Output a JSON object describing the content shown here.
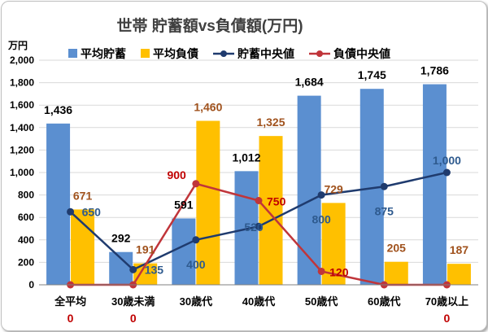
{
  "chart_data": {
    "type": "bar",
    "title": "世帯  貯蓄額vs負債額(万円)",
    "y_unit": "万円",
    "categories": [
      "全平均",
      "30歳未満",
      "30歳代",
      "40歳代",
      "50歳代",
      "60歳代",
      "70歳以上"
    ],
    "ylim": [
      0,
      2000
    ],
    "yticks": [
      "0",
      "200",
      "400",
      "600",
      "800",
      "1,000",
      "1,200",
      "1,400",
      "1,600",
      "1,800",
      "2,000"
    ],
    "grid": true,
    "legend_position": "top",
    "series": [
      {
        "name": "平均貯蓄",
        "kind": "bar",
        "color": "#5b8fd0",
        "label_color": "#000000",
        "values": [
          1436,
          292,
          591,
          1012,
          1684,
          1745,
          1786
        ],
        "labels": [
          "1,436",
          "292",
          "591",
          "1,012",
          "1,684",
          "1,745",
          "1,786"
        ]
      },
      {
        "name": "平均負債",
        "kind": "bar",
        "color": "#ffc000",
        "label_color": "#a0521d",
        "values": [
          671,
          191,
          1460,
          1325,
          729,
          205,
          187
        ],
        "labels": [
          "671",
          "191",
          "1,460",
          "1,325",
          "729",
          "205",
          "187"
        ]
      },
      {
        "name": "貯蓄中央値",
        "kind": "line",
        "color": "#1f3b6e",
        "label_color": "#2e5a8e",
        "values": [
          650,
          135,
          400,
          520,
          800,
          875,
          1000
        ],
        "labels": [
          "650",
          "135",
          "400",
          "520",
          "800",
          "875",
          "1,000"
        ]
      },
      {
        "name": "負債中央値",
        "kind": "line",
        "color": "#c0353a",
        "label_color": "#c00000",
        "values": [
          0,
          0,
          900,
          750,
          120,
          0,
          0
        ],
        "labels": [
          "0",
          "0",
          "900",
          "750",
          "120",
          "",
          "0"
        ]
      }
    ]
  }
}
